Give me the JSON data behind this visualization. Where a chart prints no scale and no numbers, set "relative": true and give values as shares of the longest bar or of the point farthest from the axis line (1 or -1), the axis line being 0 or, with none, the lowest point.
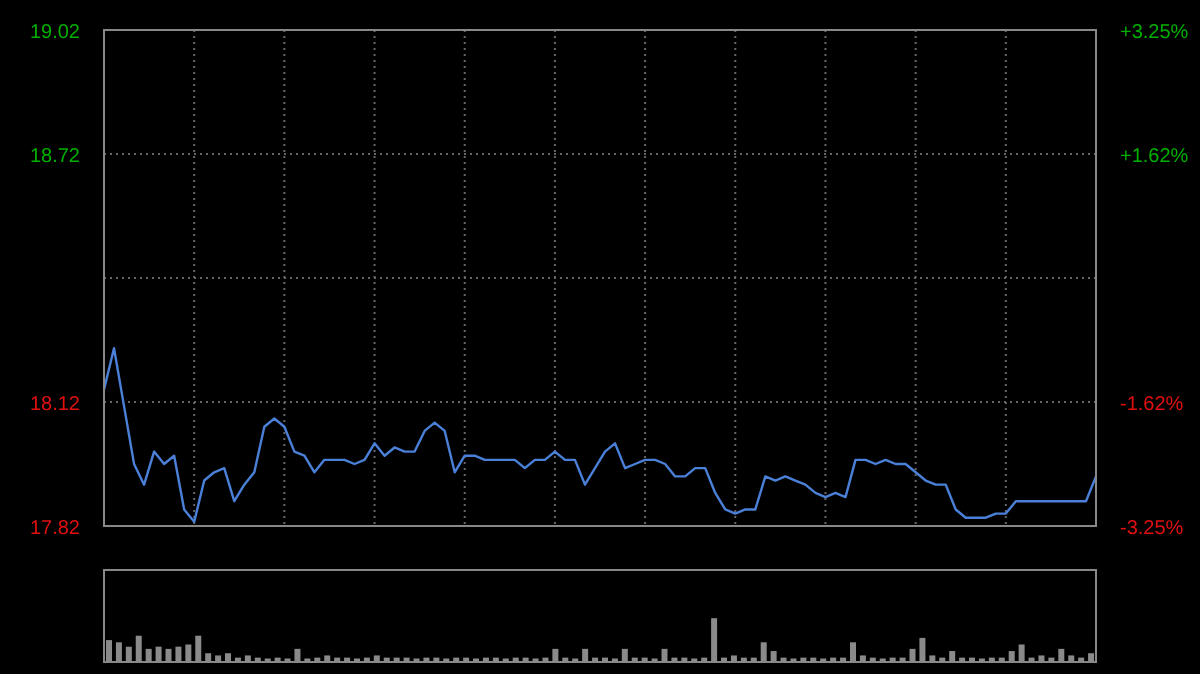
{
  "chart_data": [
    {
      "type": "line",
      "categories": [
        null,
        null,
        null,
        null,
        null,
        null,
        null,
        null,
        null,
        null,
        null,
        null,
        null,
        null,
        null,
        null,
        null,
        null,
        null,
        null,
        null,
        null,
        null,
        null,
        null,
        null,
        null,
        null,
        null,
        null,
        null,
        null,
        null,
        null,
        null,
        null,
        null,
        null,
        null,
        null,
        null,
        null,
        null,
        null,
        null,
        null,
        null,
        null,
        null,
        null,
        null,
        null,
        null,
        null,
        null,
        null,
        null,
        null,
        null,
        null,
        null,
        null,
        null,
        null,
        null,
        null,
        null,
        null,
        null,
        null,
        null,
        null,
        null,
        null,
        null,
        null,
        null,
        null,
        null,
        null,
        null,
        null,
        null,
        null,
        null,
        null,
        null,
        null,
        null,
        null,
        null,
        null,
        null,
        null,
        null,
        null,
        null,
        null,
        null,
        null
      ],
      "series": [
        {
          "color": "#4a80d8",
          "values": [
            18.15,
            18.25,
            18.11,
            17.97,
            17.92,
            18.0,
            17.97,
            17.99,
            17.86,
            17.83,
            17.93,
            17.95,
            17.96,
            17.88,
            17.92,
            17.95,
            18.06,
            18.08,
            18.06,
            18.0,
            17.99,
            17.95,
            17.98,
            17.98,
            17.98,
            17.97,
            17.98,
            18.02,
            17.99,
            18.01,
            18.0,
            18.0,
            18.05,
            18.07,
            18.05,
            17.95,
            17.99,
            17.99,
            17.98,
            17.98,
            17.98,
            17.98,
            17.96,
            17.98,
            17.98,
            18.0,
            17.98,
            17.98,
            17.92,
            17.96,
            18.0,
            18.02,
            17.96,
            17.97,
            17.98,
            17.98,
            17.97,
            17.94,
            17.94,
            17.96,
            17.96,
            17.9,
            17.86,
            17.85,
            17.86,
            17.86,
            17.94,
            17.93,
            17.94,
            17.93,
            17.92,
            17.9,
            17.89,
            17.9,
            17.89,
            17.98,
            17.98,
            17.97,
            17.98,
            17.97,
            17.97,
            17.95,
            17.93,
            17.92,
            17.92,
            17.86,
            17.84,
            17.84,
            17.84,
            17.85,
            17.85,
            17.88,
            17.88,
            17.88,
            17.88,
            17.88,
            17.88,
            17.88,
            17.88,
            17.94
          ]
        }
      ],
      "ylim": [
        17.82,
        19.02
      ],
      "yticks": [
        17.82,
        18.12,
        {
          "value": 18.42,
          "label": null
        },
        18.72,
        19.02
      ],
      "y2lim": [
        -3.25,
        3.25
      ],
      "y2ticks": [
        {
          "value": -3.25,
          "label": "-3.25%"
        },
        {
          "value": -1.62,
          "label": "-1.62%"
        },
        {
          "value": 1.62,
          "label": "+1.62%"
        },
        {
          "value": 3.25,
          "label": "+3.25%"
        }
      ],
      "grid": true
    },
    {
      "type": "bar",
      "relative": true,
      "categories": [
        null,
        null,
        null,
        null,
        null,
        null,
        null,
        null,
        null,
        null,
        null,
        null,
        null,
        null,
        null,
        null,
        null,
        null,
        null,
        null,
        null,
        null,
        null,
        null,
        null,
        null,
        null,
        null,
        null,
        null,
        null,
        null,
        null,
        null,
        null,
        null,
        null,
        null,
        null,
        null,
        null,
        null,
        null,
        null,
        null,
        null,
        null,
        null,
        null,
        null,
        null,
        null,
        null,
        null,
        null,
        null,
        null,
        null,
        null,
        null,
        null,
        null,
        null,
        null,
        null,
        null,
        null,
        null,
        null,
        null,
        null,
        null,
        null,
        null,
        null,
        null,
        null,
        null,
        null,
        null,
        null,
        null,
        null,
        null,
        null,
        null,
        null,
        null,
        null,
        null,
        null,
        null,
        null,
        null,
        null,
        null,
        null,
        null,
        null,
        null
      ],
      "series": [
        {
          "color": "#8a8a8a",
          "values": [
            0.5,
            0.45,
            0.35,
            0.6,
            0.3,
            0.35,
            0.3,
            0.35,
            0.4,
            0.6,
            0.2,
            0.15,
            0.2,
            0.1,
            0.15,
            0.1,
            0.08,
            0.1,
            0.08,
            0.3,
            0.08,
            0.1,
            0.15,
            0.1,
            0.1,
            0.08,
            0.1,
            0.15,
            0.1,
            0.1,
            0.1,
            0.08,
            0.1,
            0.1,
            0.08,
            0.1,
            0.1,
            0.08,
            0.1,
            0.1,
            0.08,
            0.1,
            0.1,
            0.08,
            0.1,
            0.3,
            0.1,
            0.08,
            0.3,
            0.1,
            0.1,
            0.08,
            0.3,
            0.1,
            0.1,
            0.08,
            0.3,
            0.1,
            0.1,
            0.08,
            0.1,
            1,
            0.1,
            0.15,
            0.1,
            0.1,
            0.45,
            0.25,
            0.1,
            0.08,
            0.1,
            0.1,
            0.08,
            0.1,
            0.1,
            0.45,
            0.15,
            0.1,
            0.08,
            0.1,
            0.1,
            0.3,
            0.55,
            0.15,
            0.1,
            0.25,
            0.1,
            0.1,
            0.08,
            0.1,
            0.1,
            0.25,
            0.4,
            0.1,
            0.15,
            0.1,
            0.3,
            0.15,
            0.1,
            0.2
          ]
        }
      ]
    }
  ]
}
